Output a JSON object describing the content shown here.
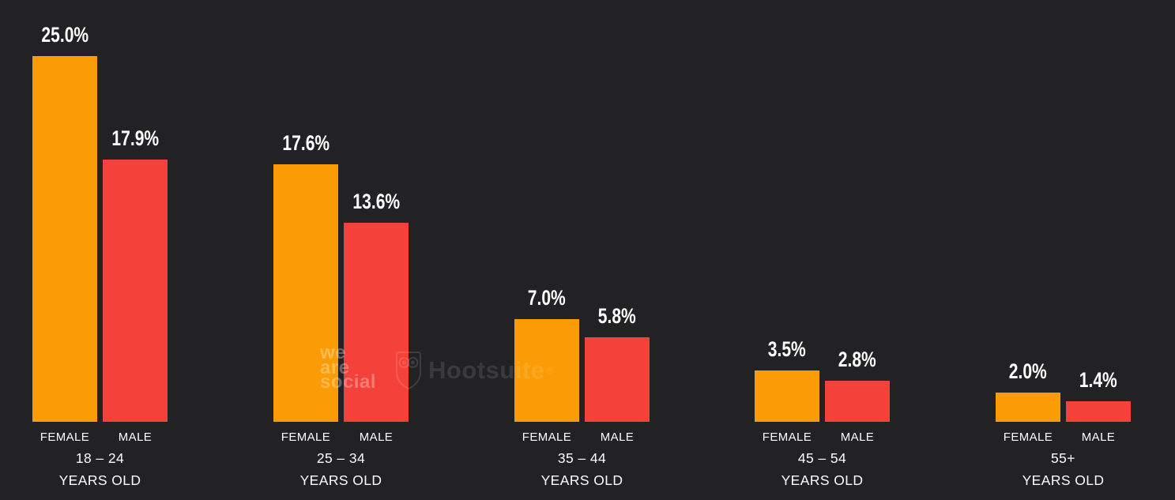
{
  "chart_data": {
    "type": "bar",
    "title": "",
    "categories": [
      "18 – 24",
      "25 – 34",
      "35 – 44",
      "45 – 54",
      "55+"
    ],
    "category_suffix": "YEARS OLD",
    "series": [
      {
        "name": "FEMALE",
        "color": "#FB9C06",
        "values": [
          25.0,
          17.6,
          7.0,
          3.5,
          2.0
        ],
        "labels": [
          "25.0%",
          "17.6%",
          "7.0%",
          "3.5%",
          "2.0%"
        ]
      },
      {
        "name": "MALE",
        "color": "#F4423A",
        "values": [
          17.9,
          13.6,
          5.8,
          2.8,
          1.4
        ],
        "labels": [
          "17.9%",
          "13.6%",
          "5.8%",
          "2.8%",
          "1.4%"
        ]
      }
    ],
    "ylim": [
      0,
      28
    ],
    "grid": false,
    "legend_position": "below-each-bar",
    "value_label_format": "one-decimal-percent"
  },
  "watermark": {
    "we_are_social_lines": [
      "we",
      "are",
      "social"
    ],
    "hootsuite_label": "Hootsuite",
    "registered_symbol": "®"
  },
  "colors": {
    "background": "#222224",
    "female_bar": "#FB9C06",
    "male_bar": "#F4423A",
    "label_text": "#FFFFFF"
  }
}
